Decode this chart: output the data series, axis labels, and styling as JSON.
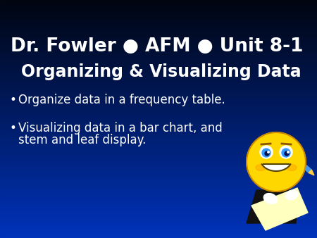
{
  "title_line1": "Dr. Fowler ● AFM ● Unit 8-1",
  "title_line2": "Organizing & Visualizing Data",
  "bullet1": "Organize data in a frequency table.",
  "bullet2_line1": "Visualizing data in a bar chart, and",
  "bullet2_line2": "stem and leaf display.",
  "text_color": "#ffffff",
  "title_fontsize": 19,
  "subtitle_fontsize": 17,
  "bullet_fontsize": 12,
  "bg_top": "#000510",
  "bg_bottom": "#0033BB",
  "fig_width": 4.5,
  "fig_height": 3.38,
  "dpi": 100
}
